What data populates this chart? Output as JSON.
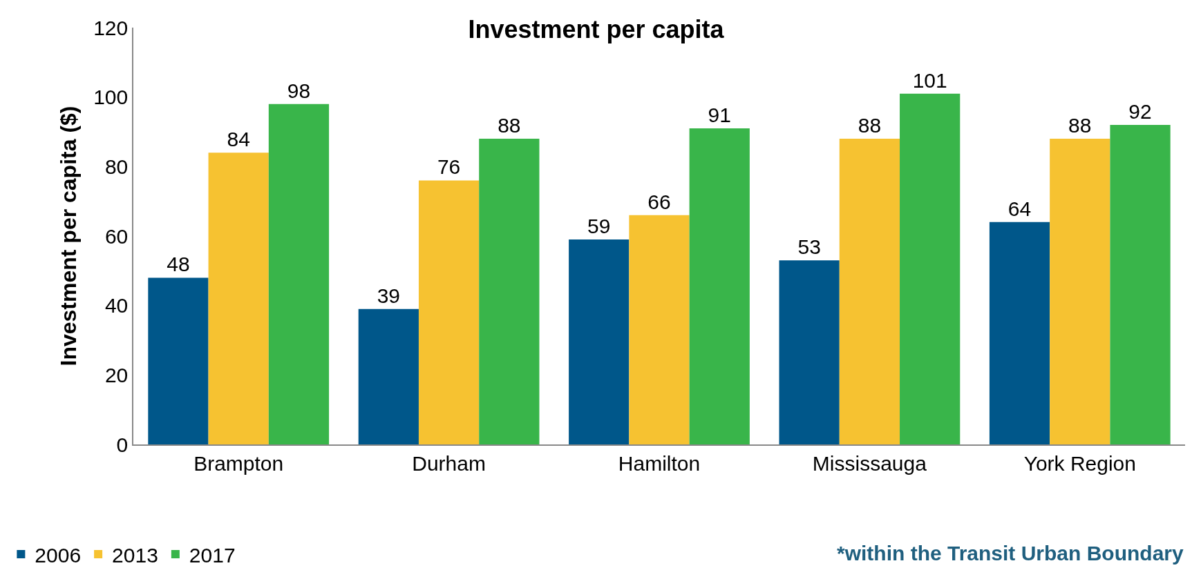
{
  "chart_data": {
    "type": "bar",
    "title": "Investment per capita",
    "ylabel": "Investment per capita ($)",
    "categories": [
      "Brampton",
      "Durham",
      "Hamilton",
      "Mississauga",
      "York Region"
    ],
    "series": [
      {
        "name": "2006",
        "color": "#00578a",
        "values": [
          48,
          39,
          59,
          53,
          64
        ]
      },
      {
        "name": "2013",
        "color": "#f6c231",
        "values": [
          84,
          76,
          66,
          88,
          88
        ]
      },
      {
        "name": "2017",
        "color": "#39b54a",
        "values": [
          98,
          88,
          91,
          101,
          92
        ]
      }
    ],
    "ylim": [
      0,
      120
    ],
    "yticks": [
      0,
      20,
      40,
      60,
      80,
      100,
      120
    ],
    "legend": "bottom left",
    "data_labels": true,
    "annotations": [
      "*within the Transit Urban Boundary"
    ]
  }
}
